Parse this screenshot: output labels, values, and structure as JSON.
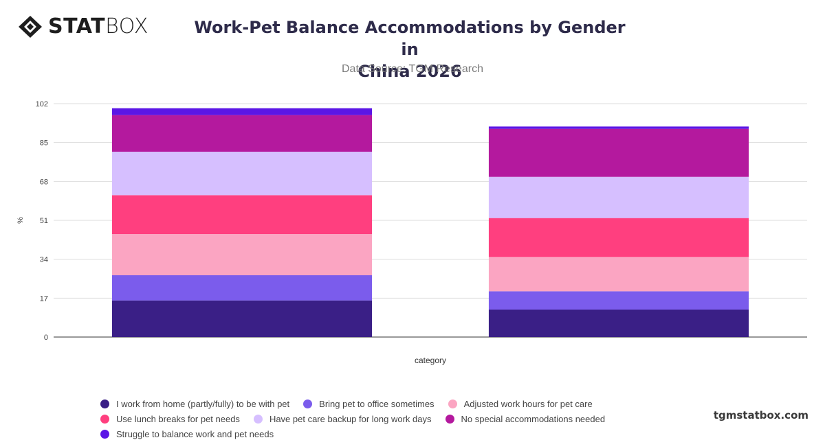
{
  "brand": {
    "logo_bold": "STAT",
    "logo_light": "BOX",
    "watermark": "tgmstatbox.com"
  },
  "header": {
    "title_line1": "Work-Pet Balance Accommodations by Gender in",
    "title_line2": "China 2026",
    "subtitle": "Data Source: TGM Research"
  },
  "chart_data": {
    "type": "bar",
    "stacked": true,
    "title": "Work-Pet Balance Accommodations by Gender in China 2026",
    "subtitle": "Data Source: TGM Research",
    "xlabel": "category",
    "ylabel": "%",
    "categories": [
      "",
      ""
    ],
    "ylim": [
      0,
      102
    ],
    "yticks": [
      0,
      17,
      34,
      51,
      68,
      85,
      102
    ],
    "grid": true,
    "legend_position": "bottom",
    "series": [
      {
        "name": "I work from home (partly/fully) to be with pet",
        "color": "#3a1f86",
        "values": [
          16,
          12
        ]
      },
      {
        "name": "Bring pet to office sometimes",
        "color": "#7b5cec",
        "values": [
          11,
          8
        ]
      },
      {
        "name": "Adjusted work hours for pet care",
        "color": "#fba5c2",
        "values": [
          18,
          15
        ]
      },
      {
        "name": "Use lunch breaks for pet needs",
        "color": "#ff3f7f",
        "values": [
          17,
          17
        ]
      },
      {
        "name": "Have pet care backup for long work days",
        "color": "#d6bfff",
        "values": [
          19,
          18
        ]
      },
      {
        "name": "No special accommodations needed",
        "color": "#b4199e",
        "values": [
          16,
          21
        ]
      },
      {
        "name": "Struggle to balance work and pet needs",
        "color": "#5b16e6",
        "values": [
          3,
          1
        ]
      }
    ]
  }
}
